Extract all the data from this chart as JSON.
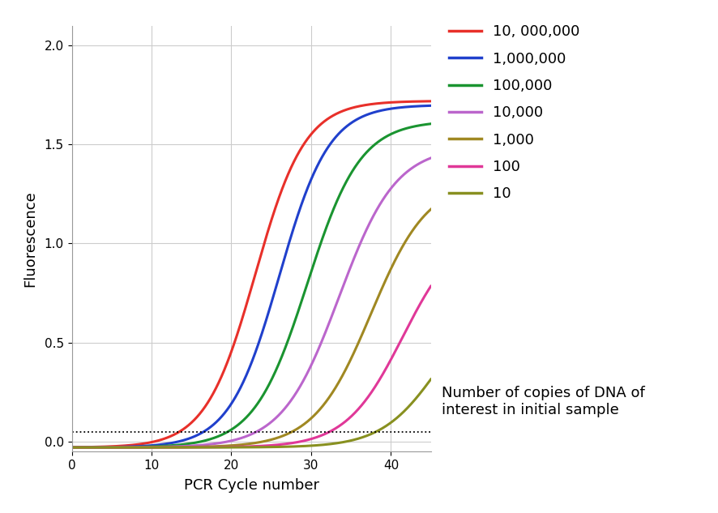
{
  "title": "",
  "xlabel": "PCR Cycle number",
  "ylabel": "Fluorescence",
  "xlim": [
    0,
    45
  ],
  "ylim": [
    -0.05,
    2.1
  ],
  "xticks": [
    0,
    10,
    20,
    30,
    40
  ],
  "yticks": [
    0,
    0.5,
    1,
    1.5,
    2
  ],
  "background_color": "#ffffff",
  "plot_bg_color": "#ffffff",
  "grid_color": "#cccccc",
  "dotted_line_y": 0.05,
  "series": [
    {
      "label": "10, 000,000",
      "color": "#e8302a",
      "midpoint": 23.0,
      "L": 1.75,
      "k": 0.32
    },
    {
      "label": "1,000,000",
      "color": "#2040cc",
      "midpoint": 26.0,
      "L": 1.73,
      "k": 0.32
    },
    {
      "label": "100,000",
      "color": "#1a9430",
      "midpoint": 29.5,
      "L": 1.65,
      "k": 0.3
    },
    {
      "label": "10,000",
      "color": "#bb66cc",
      "midpoint": 33.5,
      "L": 1.52,
      "k": 0.28
    },
    {
      "label": "1,000",
      "color": "#a08822",
      "midpoint": 37.5,
      "L": 1.35,
      "k": 0.28
    },
    {
      "label": "100",
      "color": "#e03898",
      "midpoint": 41.5,
      "L": 1.12,
      "k": 0.28
    },
    {
      "label": "10",
      "color": "#889020",
      "midpoint": 46.0,
      "L": 0.8,
      "k": 0.28
    }
  ],
  "legend_caption": "Number of copies of DNA of\ninterest in initial sample",
  "legend_fontsize": 13,
  "caption_fontsize": 13,
  "axis_label_fontsize": 13,
  "tick_fontsize": 11,
  "linewidth": 2.2,
  "figsize": [
    8.86,
    6.33
  ],
  "dpi": 100
}
